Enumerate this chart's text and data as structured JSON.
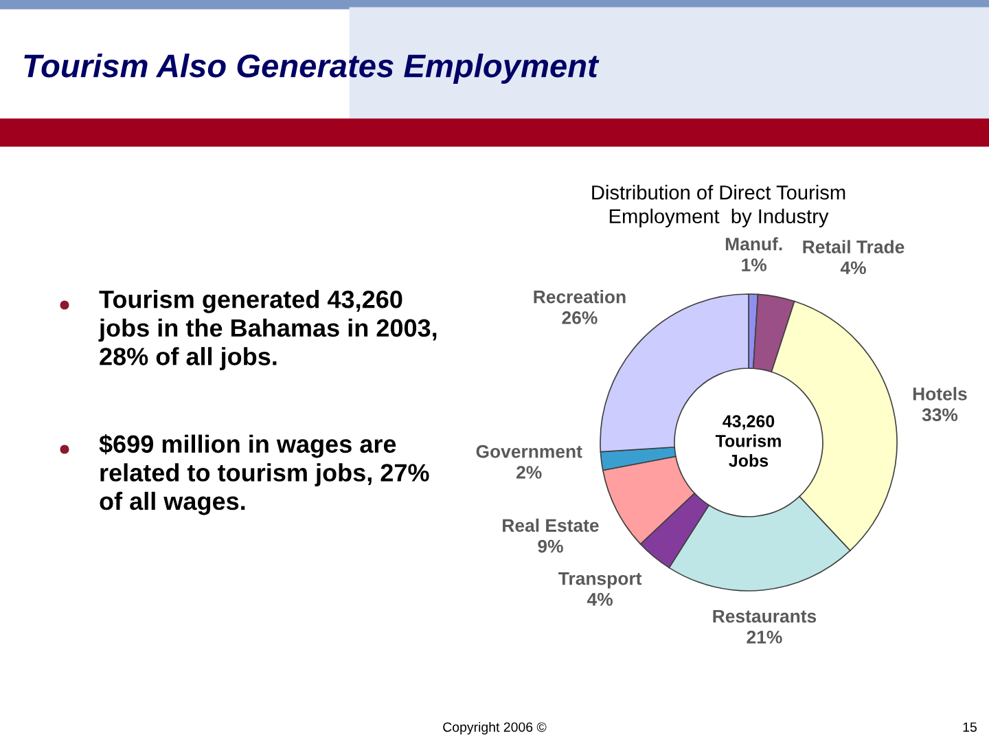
{
  "chart_data": {
    "type": "donut",
    "title": "Tourism Also Generates Employment",
    "subtitle": "Distribution of Direct Tourism\nEmployment  by Industry",
    "categories": [
      "Manuf.",
      "Retail Trade",
      "Hotels",
      "Restaurants",
      "Transport",
      "Real Estate",
      "Government",
      "Recreation"
    ],
    "values": [
      1,
      4,
      33,
      21,
      4,
      9,
      2,
      26
    ],
    "value_labels": [
      "1%",
      "4%",
      "33%",
      "21%",
      "4%",
      "9%",
      "2%",
      "26%"
    ],
    "colors": [
      "#8f8ff0",
      "#9a4f86",
      "#ffffcc",
      "#bfe6e6",
      "#843c9c",
      "#ff9f9f",
      "#3a9fd0",
      "#ccccff"
    ],
    "annotations": [
      "Tourism generated 43,260\njobs in the Bahamas in 2003,\n28% of all jobs.",
      "$699 million in wages are\nrelated to tourism jobs, 27%\nof all wages.",
      "43,260\nTourism\nJobs",
      "Copyright 2006 ©",
      "15"
    ]
  }
}
